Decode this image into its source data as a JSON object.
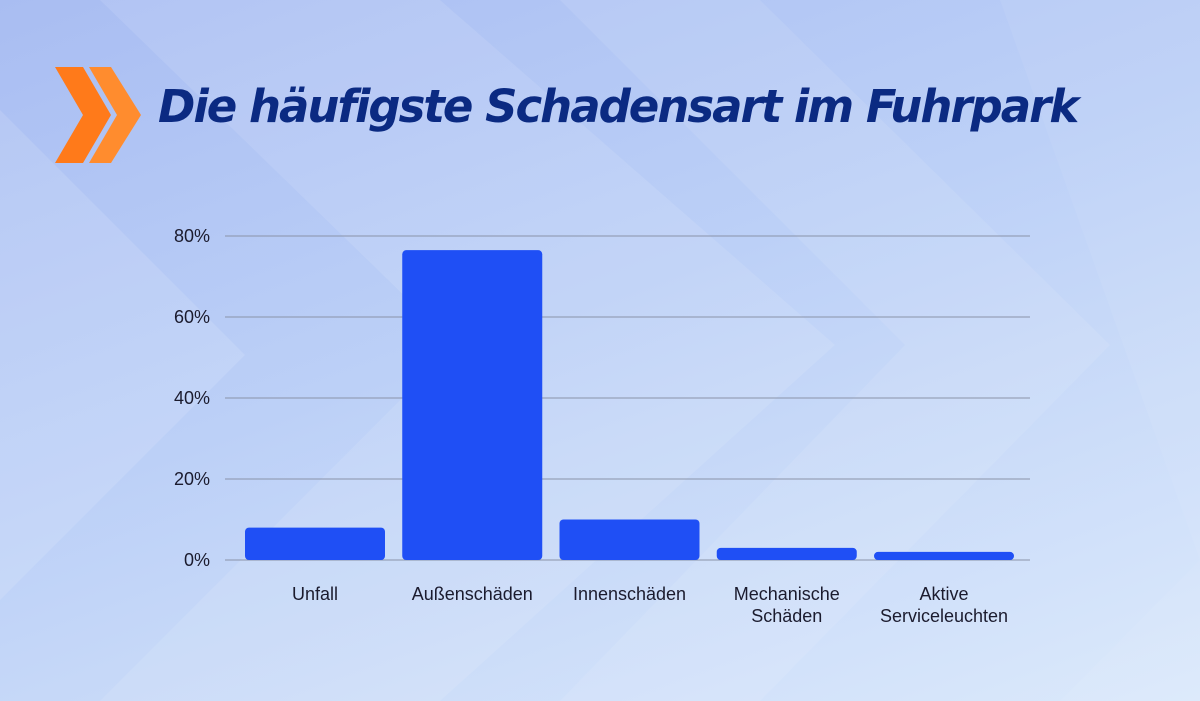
{
  "title": "Die häufigste Schadensart im Fuhrpark",
  "colors": {
    "bar": "#1f4ff5",
    "title": "#0b2a82",
    "accent": "#ff7a1a",
    "grid": "#8a93a8"
  },
  "icons": {
    "logo": "double-chevron-icon"
  },
  "chart_data": {
    "type": "bar",
    "title": "Die häufigste Schadensart im Fuhrpark",
    "xlabel": "",
    "ylabel": "",
    "categories": [
      [
        "Unfall"
      ],
      [
        "Außenschäden"
      ],
      [
        "Innenschäden"
      ],
      [
        "Mechanische",
        "Schäden"
      ],
      [
        "Aktive",
        "Serviceleuchten"
      ]
    ],
    "values": [
      8,
      76.5,
      10,
      3,
      2
    ],
    "ylim": [
      0,
      80
    ],
    "yticks": [
      0,
      20,
      40,
      60,
      80
    ],
    "ytick_labels": [
      "0%",
      "20%",
      "40%",
      "60%",
      "80%"
    ],
    "grid": true,
    "legend": "none"
  }
}
